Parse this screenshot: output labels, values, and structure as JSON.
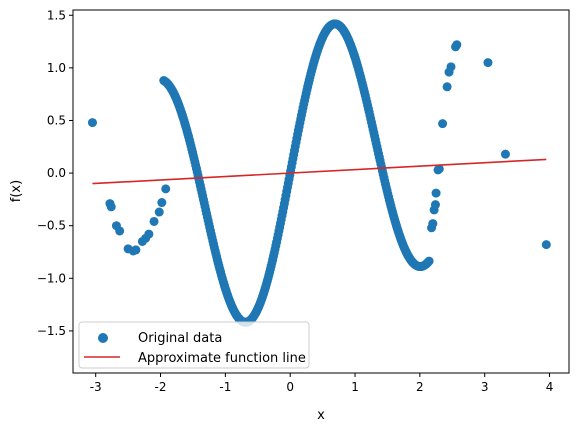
{
  "chart_data": {
    "type": "scatter",
    "xlabel": "x",
    "ylabel": "f(x)",
    "xlim": [
      -3.35,
      4.3
    ],
    "ylim": [
      -1.9,
      1.55
    ],
    "grid": false,
    "legend_placement": "lower-left",
    "x_ticks": [
      "-3",
      "-2",
      "-1",
      "0",
      "1",
      "2",
      "3",
      "4"
    ],
    "x_tick_values": [
      -3,
      -2,
      -1,
      0,
      1,
      2,
      3,
      4
    ],
    "y_ticks": [
      "−1.5",
      "−1.0",
      "−0.5",
      "0.0",
      "0.5",
      "1.0",
      "1.5"
    ],
    "y_tick_values": [
      -1.5,
      -1.0,
      -0.5,
      0.0,
      0.5,
      1.0,
      1.5
    ],
    "series": [
      {
        "name": "Original data",
        "kind": "scatter",
        "color": "#1f77b4",
        "points": [
          [
            -3.05,
            0.48
          ],
          [
            -2.78,
            -0.29
          ],
          [
            -2.76,
            -0.32
          ],
          [
            -2.68,
            -0.5
          ],
          [
            -2.63,
            -0.55
          ],
          [
            -2.5,
            -0.72
          ],
          [
            -2.42,
            -0.74
          ],
          [
            -2.38,
            -0.73
          ],
          [
            -2.28,
            -0.65
          ],
          [
            -2.23,
            -0.62
          ],
          [
            -2.18,
            -0.58
          ],
          [
            -2.1,
            -0.46
          ],
          [
            -2.02,
            -0.37
          ],
          [
            -1.98,
            -0.28
          ],
          [
            -1.92,
            -0.15
          ]
        ],
        "dense_curve": {
          "formula": "sin(2.5x)+0.5sin(1.5x)",
          "x_start": -1.95,
          "x_end": 2.15,
          "step": 0.012
        },
        "extra_points": [
          [
            2.18,
            -0.52
          ],
          [
            2.2,
            -0.48
          ],
          [
            2.22,
            -0.35
          ],
          [
            2.24,
            -0.3
          ],
          [
            2.25,
            -0.19
          ],
          [
            2.28,
            0.03
          ],
          [
            2.3,
            0.04
          ],
          [
            2.35,
            0.47
          ],
          [
            2.42,
            0.82
          ],
          [
            2.45,
            0.96
          ],
          [
            2.48,
            1.01
          ],
          [
            2.55,
            1.2
          ],
          [
            2.57,
            1.22
          ],
          [
            3.05,
            1.05
          ],
          [
            3.32,
            0.18
          ],
          [
            3.95,
            -0.68
          ]
        ]
      },
      {
        "name": "Approximate function line",
        "kind": "line",
        "color": "#d62728",
        "x": [
          -3.05,
          3.95
        ],
        "y": [
          -0.1,
          0.13
        ]
      }
    ]
  }
}
